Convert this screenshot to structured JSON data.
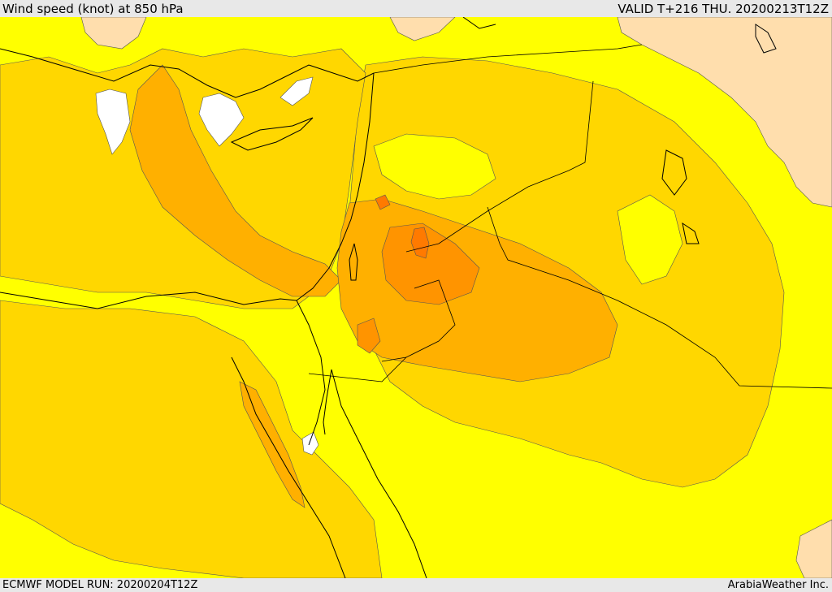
{
  "header": {
    "title": "Wind speed (knot) at 850 hPa",
    "valid": "VALID T+216 THU. 20200213T12Z"
  },
  "footer": {
    "model_run": "ECMWF MODEL RUN: 20200204T12Z",
    "credit": "ArabiaWeather Inc."
  },
  "colors": {
    "band_lowest": "#ffffff",
    "band_low": "#ffff00",
    "band_mid": "#ffd700",
    "band_high": "#ffb000",
    "band_higher": "#ff9400",
    "band_peak": "#ff7a00",
    "band_calm_beige": "#ffdead",
    "coastline": "#000000"
  }
}
